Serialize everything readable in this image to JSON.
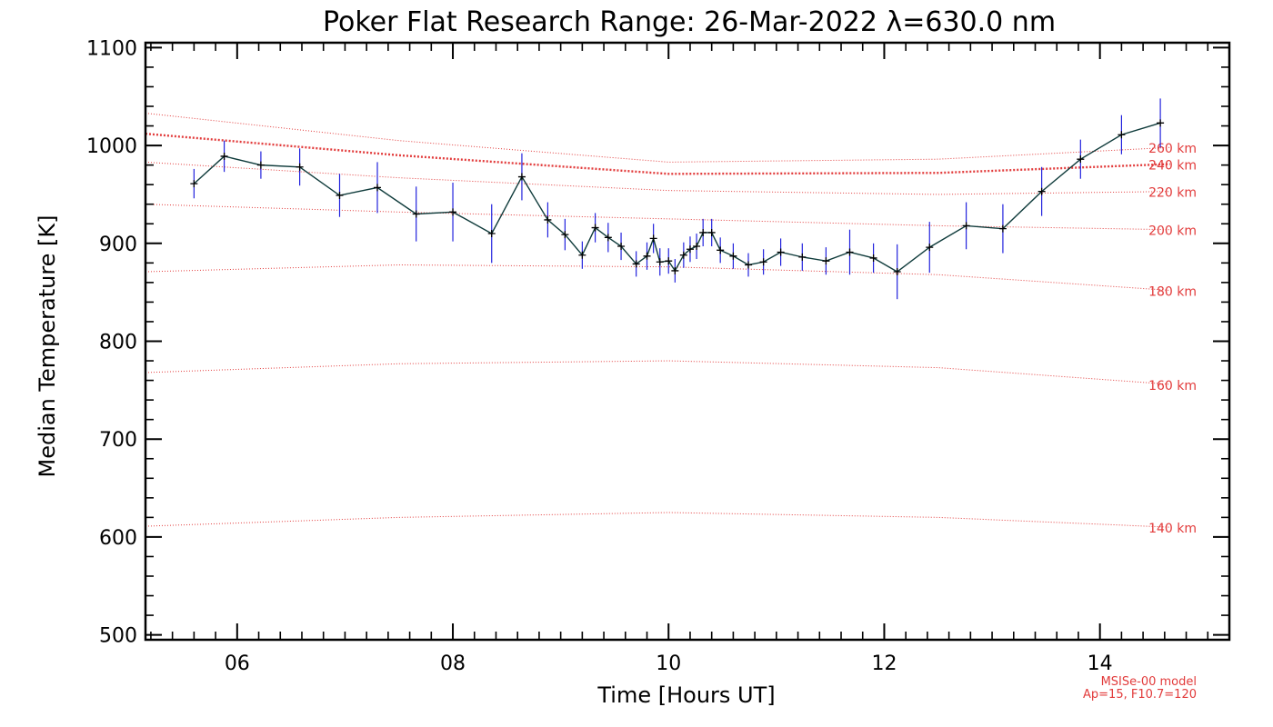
{
  "chart_data": {
    "type": "line",
    "title": "Poker Flat Research Range: 26-Mar-2022 λ=630.0 nm",
    "xlabel": "Time [Hours UT]",
    "ylabel": "Median Temperature [K]",
    "xlim": [
      5.15,
      15.2
    ],
    "ylim": [
      495,
      1105
    ],
    "xticks": [
      6,
      8,
      10,
      12,
      14
    ],
    "xtick_labels": [
      "06",
      "08",
      "10",
      "12",
      "14"
    ],
    "yticks": [
      500,
      600,
      700,
      800,
      900,
      1000,
      1100
    ],
    "ytick_labels": [
      "500",
      "600",
      "700",
      "800",
      "900",
      "1000",
      "1100"
    ],
    "grid": false,
    "series": [
      {
        "name": "Median Temperature",
        "color": "#0f3b3b",
        "errorbar_color": "#2222dd",
        "x": [
          5.6,
          5.88,
          6.22,
          6.58,
          6.95,
          7.3,
          7.66,
          8.0,
          8.36,
          8.64,
          8.88,
          9.04,
          9.2,
          9.32,
          9.44,
          9.56,
          9.7,
          9.8,
          9.86,
          9.92,
          10.0,
          10.06,
          10.14,
          10.2,
          10.26,
          10.32,
          10.4,
          10.48,
          10.6,
          10.74,
          10.88,
          11.04,
          11.24,
          11.46,
          11.68,
          11.9,
          12.12,
          12.42,
          12.76,
          13.1,
          13.46,
          13.82,
          14.2,
          14.56
        ],
        "values": [
          961,
          989,
          980,
          978,
          949,
          957,
          930,
          932,
          910,
          968,
          924,
          909,
          888,
          916,
          906,
          897,
          879,
          887,
          905,
          881,
          882,
          872,
          888,
          894,
          897,
          911,
          911,
          893,
          887,
          878,
          881,
          891,
          886,
          882,
          891,
          885,
          871,
          896,
          918,
          915,
          953,
          986,
          1011,
          1023
        ],
        "errors": [
          15,
          16,
          14,
          19,
          22,
          26,
          28,
          30,
          30,
          24,
          18,
          16,
          14,
          15,
          15,
          14,
          13,
          14,
          15,
          14,
          13,
          12,
          13,
          13,
          13,
          14,
          14,
          13,
          13,
          12,
          13,
          14,
          14,
          14,
          23,
          15,
          28,
          26,
          24,
          25,
          25,
          20,
          20,
          25
        ]
      }
    ],
    "model_curves": [
      {
        "label": "140 km",
        "x": [
          5.15,
          7.5,
          10.0,
          12.5,
          14.65
        ],
        "values": [
          611,
          620,
          625,
          620,
          610
        ]
      },
      {
        "label": "160 km",
        "x": [
          5.15,
          7.5,
          10.0,
          12.5,
          14.65
        ],
        "values": [
          768,
          777,
          780,
          773,
          756
        ]
      },
      {
        "label": "180 km",
        "x": [
          5.15,
          7.5,
          10.0,
          12.5,
          14.65
        ],
        "values": [
          871,
          878,
          876,
          868,
          852
        ]
      },
      {
        "label": "200 km",
        "x": [
          5.15,
          7.5,
          10.0,
          12.5,
          14.65
        ],
        "values": [
          940,
          932,
          925,
          918,
          914
        ]
      },
      {
        "label": "220 km",
        "x": [
          5.15,
          7.5,
          10.0,
          12.5,
          14.65
        ],
        "values": [
          983,
          967,
          954,
          950,
          953
        ]
      },
      {
        "label": "240 km",
        "x": [
          5.15,
          7.5,
          10.0,
          12.5,
          14.65
        ],
        "values": [
          1012,
          990,
          971,
          972,
          981
        ]
      },
      {
        "label": "260 km",
        "x": [
          5.15,
          7.5,
          10.0,
          12.5,
          14.65
        ],
        "values": [
          1033,
          1005,
          983,
          986,
          998
        ]
      }
    ],
    "model_curve_color": "#e23b3b",
    "emphasized_curve": "240 km",
    "footnote": [
      "MSISe-00 model",
      "Ap=15, F10.7=120"
    ]
  }
}
